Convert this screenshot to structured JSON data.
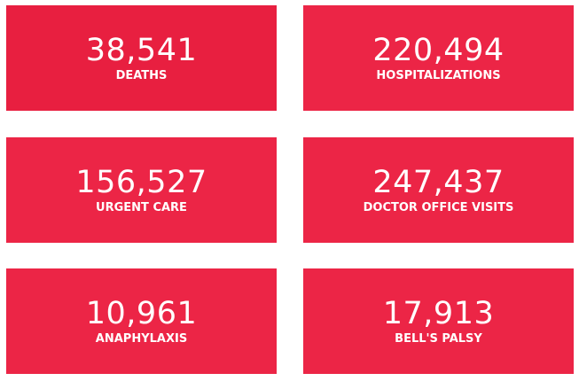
{
  "stats": [
    {
      "value": "38,541",
      "label": "DEATHS"
    },
    {
      "value": "220,494",
      "label": "HOSPITALIZATIONS"
    },
    {
      "value": "156,527",
      "label": "URGENT CARE"
    },
    {
      "value": "247,437",
      "label": "DOCTOR OFFICE VISITS"
    },
    {
      "value": "10,961",
      "label": "ANAPHYLAXIS"
    },
    {
      "value": "17,913",
      "label": "BELL'S PALSY"
    }
  ],
  "colors": {
    "card": "#ec2546",
    "card_first": "#e81f40",
    "text": "#ffffff",
    "background": "#ffffff"
  }
}
